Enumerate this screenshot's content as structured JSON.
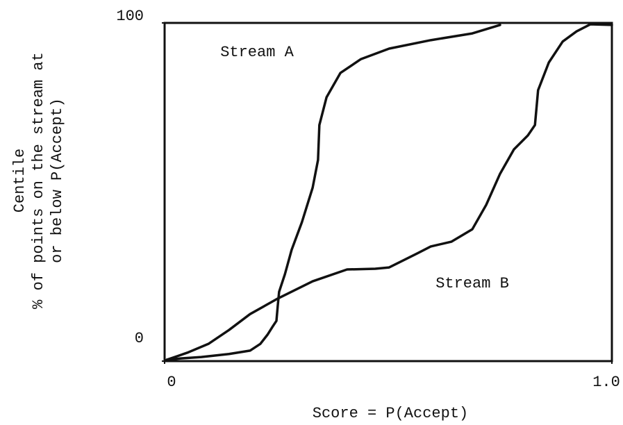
{
  "chart_data": {
    "type": "line",
    "xlabel": "Score = P(Accept)",
    "ylabel": [
      "Centile",
      "% of points on the stream at",
      "or below P(Accept)"
    ],
    "xlim": [
      0,
      1
    ],
    "ylim": [
      0,
      100
    ],
    "xticks": [
      0,
      {
        "value": 1,
        "label": "1.0"
      }
    ],
    "yticks": [
      0,
      100
    ],
    "grid": false,
    "color": "#111111",
    "series": [
      {
        "name": "Stream A",
        "color": "#111111",
        "x": [
          0.005,
          0.036,
          0.082,
          0.144,
          0.191,
          0.214,
          0.23,
          0.242,
          0.25,
          0.253,
          0.256,
          0.269,
          0.284,
          0.307,
          0.331,
          0.343,
          0.346,
          0.362,
          0.393,
          0.439,
          0.502,
          0.595,
          0.688,
          0.75
        ],
        "values": [
          0.4,
          0.8,
          1.2,
          2.1,
          3.1,
          5.1,
          7.8,
          10.3,
          11.9,
          16.4,
          20.5,
          25.7,
          32.9,
          41.1,
          51.3,
          59.5,
          69.8,
          78.0,
          85.2,
          89.3,
          92.4,
          94.9,
          96.9,
          99.4
        ]
      },
      {
        "name": "Stream B",
        "color": "#111111",
        "x": [
          0.005,
          0.051,
          0.098,
          0.144,
          0.191,
          0.253,
          0.331,
          0.408,
          0.471,
          0.502,
          0.564,
          0.595,
          0.641,
          0.688,
          0.719,
          0.75,
          0.781,
          0.812,
          0.828,
          0.835,
          0.859,
          0.89,
          0.921,
          0.952,
          1.0
        ],
        "values": [
          0.4,
          2.5,
          5.1,
          9.2,
          13.9,
          18.5,
          23.6,
          27.1,
          27.3,
          27.7,
          31.8,
          33.9,
          35.3,
          39.0,
          46.2,
          55.4,
          62.6,
          66.7,
          69.8,
          80.1,
          88.3,
          94.5,
          97.5,
          99.6,
          99.4
        ]
      }
    ]
  }
}
